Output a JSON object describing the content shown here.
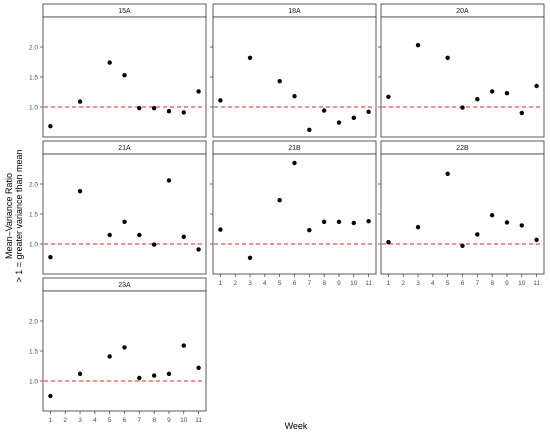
{
  "chart_data": {
    "type": "scatter",
    "xlabel": "Week",
    "ylabel_lines": [
      "Mean–Variance Ratio",
      "> 1 = greater variance than mean"
    ],
    "xlim": [
      0.5,
      11.5
    ],
    "ylim": [
      0.5,
      2.5
    ],
    "x_ticks": [
      1,
      2,
      3,
      4,
      5,
      6,
      7,
      8,
      9,
      10,
      11
    ],
    "y_ticks": [
      1.0,
      1.5,
      2.0
    ],
    "y_tick_labels": [
      "1.0",
      "1.5",
      "2.0"
    ],
    "reference_line": {
      "y": 1.0,
      "style": "dashed",
      "color": "#e8211b"
    },
    "point_color": "#000000",
    "panels": [
      {
        "label": "15A",
        "x": [
          1,
          3,
          5,
          6,
          7,
          8,
          9,
          10,
          11
        ],
        "y": [
          0.68,
          1.09,
          1.74,
          1.53,
          0.98,
          0.98,
          0.93,
          0.91,
          1.26
        ]
      },
      {
        "label": "18A",
        "x": [
          1,
          3,
          5,
          6,
          7,
          8,
          9,
          10,
          11
        ],
        "y": [
          1.11,
          1.82,
          1.43,
          1.18,
          0.62,
          0.94,
          0.74,
          0.82,
          0.92
        ]
      },
      {
        "label": "20A",
        "x": [
          1,
          3,
          5,
          6,
          7,
          8,
          9,
          10,
          11
        ],
        "y": [
          1.17,
          2.03,
          1.82,
          0.99,
          1.13,
          1.26,
          1.23,
          0.9,
          1.35
        ]
      },
      {
        "label": "21A",
        "x": [
          1,
          3,
          5,
          6,
          7,
          8,
          9,
          10,
          11
        ],
        "y": [
          0.78,
          1.88,
          1.15,
          1.37,
          1.15,
          0.99,
          2.06,
          1.12,
          0.91
        ]
      },
      {
        "label": "21B",
        "x": [
          1,
          3,
          5,
          6,
          7,
          8,
          9,
          10,
          11
        ],
        "y": [
          1.24,
          0.77,
          1.73,
          2.35,
          1.23,
          1.37,
          1.37,
          1.35,
          1.38
        ]
      },
      {
        "label": "22B",
        "x": [
          1,
          3,
          5,
          6,
          7,
          8,
          9,
          10,
          11
        ],
        "y": [
          1.03,
          1.28,
          2.17,
          0.97,
          1.16,
          1.48,
          1.36,
          1.31,
          1.07
        ]
      },
      {
        "label": "23A",
        "x": [
          1,
          3,
          5,
          6,
          7,
          8,
          9,
          10,
          11
        ],
        "y": [
          0.75,
          1.12,
          1.41,
          1.56,
          1.05,
          1.09,
          1.12,
          1.59,
          1.22
        ]
      }
    ]
  }
}
